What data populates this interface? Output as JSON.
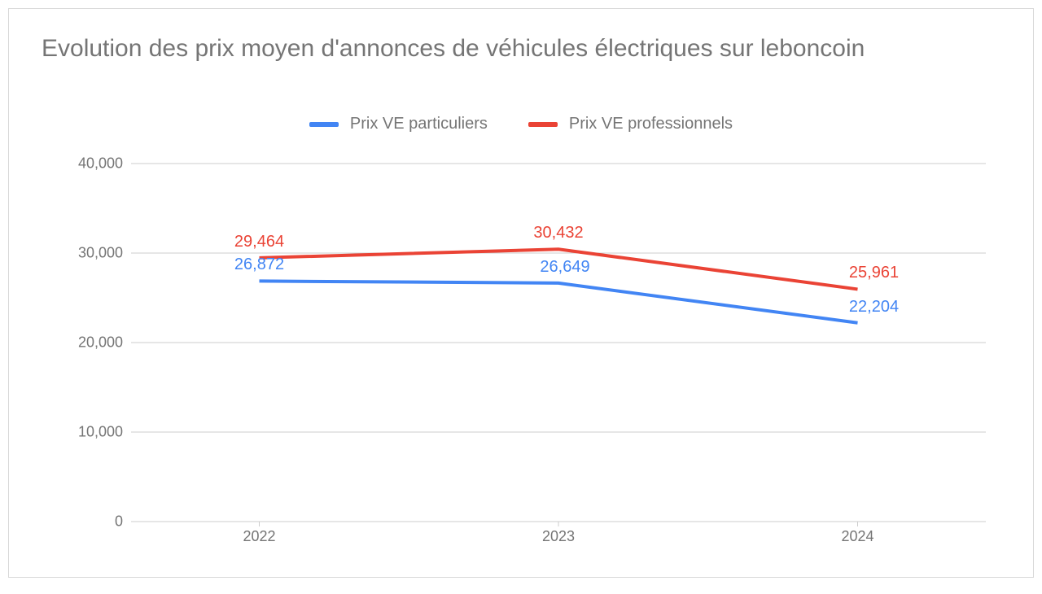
{
  "chart": {
    "type": "line",
    "title": "Evolution des prix moyen d'annonces de véhicules électriques sur leboncoin",
    "title_color": "#757575",
    "title_fontsize": 30,
    "background_color": "#ffffff",
    "border_color": "#d9d9d9",
    "plot": {
      "x_categories": [
        "2022",
        "2023",
        "2024"
      ],
      "x_positions": [
        0.15,
        0.5,
        0.85
      ],
      "y": {
        "min": 0,
        "max": 40000,
        "ticks": [
          0,
          10000,
          20000,
          30000,
          40000
        ],
        "tick_labels": [
          "0",
          "10,000",
          "20,000",
          "30,000",
          "40,000"
        ]
      },
      "axis_color": "#cccccc",
      "tick_label_color": "#757575",
      "tick_fontsize": 18,
      "line_width": 4
    },
    "legend": {
      "items": [
        {
          "label": "Prix VE particuliers",
          "color": "#4285f4"
        },
        {
          "label": "Prix VE professionnels",
          "color": "#ea4335"
        }
      ],
      "fontsize": 20,
      "text_color": "#757575"
    },
    "series": [
      {
        "name": "Prix VE particuliers",
        "color": "#4285f4",
        "values": [
          26872,
          26649,
          22204
        ],
        "value_labels": [
          "26,872",
          "26,649",
          "22,204"
        ],
        "label_offsets_y": [
          -8,
          -8,
          -8
        ],
        "label_offsets_x": [
          0,
          8,
          20
        ]
      },
      {
        "name": "Prix VE professionnels",
        "color": "#ea4335",
        "values": [
          29464,
          30432,
          25961
        ],
        "value_labels": [
          "29,464",
          "30,432",
          "25,961"
        ],
        "label_offsets_y": [
          -8,
          -8,
          -8
        ],
        "label_offsets_x": [
          0,
          0,
          20
        ]
      }
    ]
  }
}
